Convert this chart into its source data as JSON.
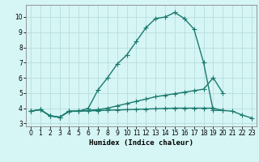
{
  "xlabel": "Humidex (Indice chaleur)",
  "bg_color": "#d6f5f5",
  "line_color": "#1a7a6e",
  "grid_color": "#b8dede",
  "xlim": [
    -0.5,
    23.5
  ],
  "ylim": [
    2.8,
    10.8
  ],
  "yticks": [
    3,
    4,
    5,
    6,
    7,
    8,
    9,
    10
  ],
  "xticks": [
    0,
    1,
    2,
    3,
    4,
    5,
    6,
    7,
    8,
    9,
    10,
    11,
    12,
    13,
    14,
    15,
    16,
    17,
    18,
    19,
    20,
    21,
    22,
    23
  ],
  "line1_x": [
    0,
    1,
    2,
    3,
    4,
    5,
    6,
    7,
    8,
    9,
    10,
    11,
    12,
    13,
    14,
    15,
    16,
    17,
    18,
    19,
    20
  ],
  "line1_y": [
    3.8,
    3.9,
    3.5,
    3.4,
    3.8,
    3.8,
    4.0,
    5.2,
    6.0,
    6.9,
    7.5,
    8.4,
    9.3,
    9.9,
    10.0,
    10.3,
    9.9,
    9.2,
    7.0,
    3.85,
    3.85
  ],
  "line2_x": [
    0,
    1,
    2,
    3,
    4,
    5,
    6,
    7,
    8,
    9,
    10,
    11,
    12,
    13,
    14,
    15,
    16,
    17,
    18,
    19,
    20,
    21,
    22,
    23
  ],
  "line2_y": [
    3.8,
    3.9,
    3.5,
    3.4,
    3.8,
    3.82,
    3.85,
    3.9,
    4.0,
    4.15,
    4.3,
    4.45,
    4.6,
    4.75,
    4.85,
    4.95,
    5.05,
    5.15,
    5.25,
    6.0,
    5.0,
    null,
    null,
    null
  ],
  "line3_x": [
    0,
    1,
    2,
    3,
    4,
    5,
    6,
    7,
    8,
    9,
    10,
    11,
    12,
    13,
    14,
    15,
    16,
    17,
    18,
    19,
    20,
    21,
    22,
    23
  ],
  "line3_y": [
    3.8,
    3.9,
    3.5,
    3.4,
    3.78,
    3.8,
    3.82,
    3.84,
    3.86,
    3.88,
    3.9,
    3.92,
    3.94,
    3.96,
    3.98,
    4.0,
    4.0,
    4.0,
    4.0,
    4.0,
    3.85,
    3.8,
    3.55,
    3.35
  ],
  "marker_size": 2.5,
  "line_width": 1.0
}
